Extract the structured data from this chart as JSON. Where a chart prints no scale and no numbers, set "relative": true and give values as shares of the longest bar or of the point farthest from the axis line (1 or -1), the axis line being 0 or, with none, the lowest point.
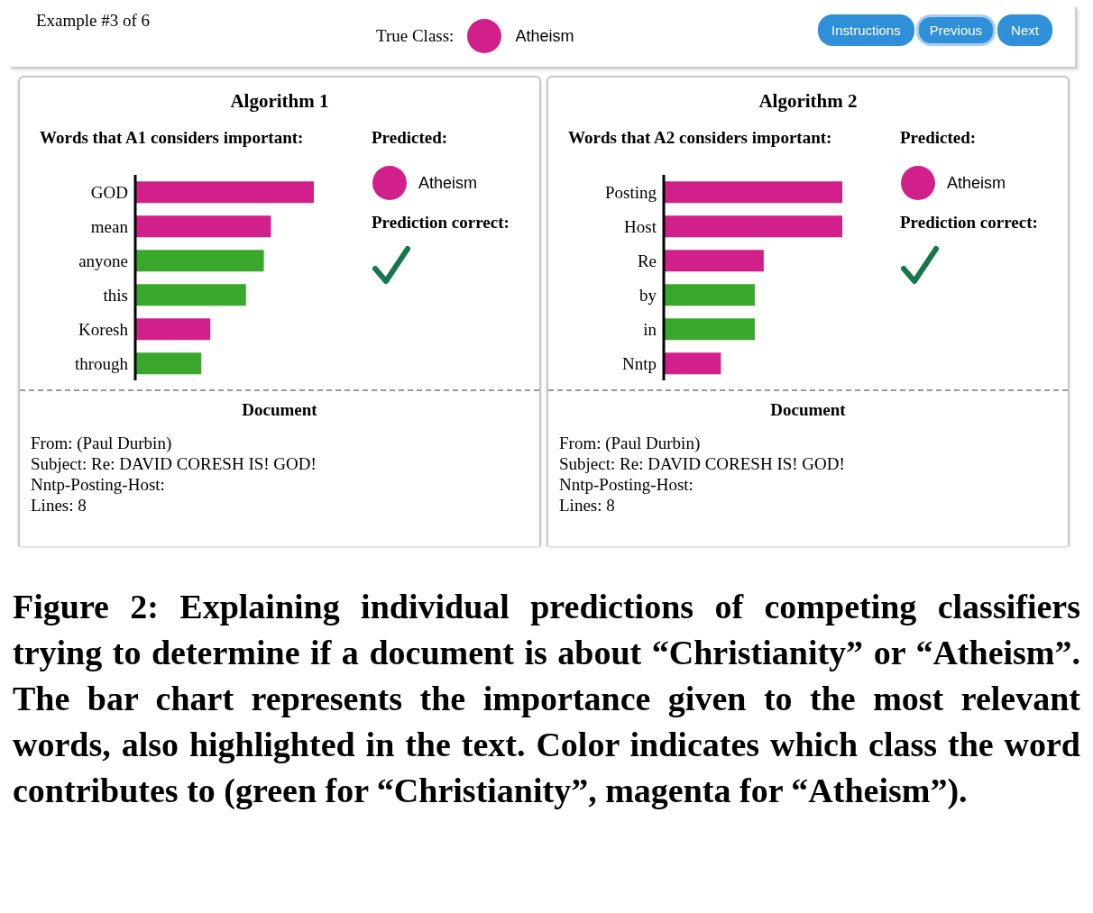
{
  "chart_data": [
    {
      "type": "bar",
      "orientation": "horizontal",
      "relative": true,
      "title": "Algorithm 1",
      "subtitle": "Words that A1 considers important:",
      "categories": [
        "GOD",
        "mean",
        "anyone",
        "this",
        "Koresh",
        "through"
      ],
      "values": [
        1,
        0.76,
        0.72,
        0.62,
        0.42,
        0.37
      ],
      "colors": [
        "#d1208a",
        "#d1208a",
        "#3aa82c",
        "#3aa82c",
        "#d1208a",
        "#3aa82c"
      ],
      "annotations": [
        "Example #3 of 6",
        "True Class:",
        "Atheism",
        "Instructions",
        "Previous",
        "Next",
        "Predicted:",
        "Atheism",
        "Prediction correct:",
        "Document",
        "From: (Paul Durbin)",
        "Subject: Re: DAVID CORESH IS! GOD!",
        "Nntp-Posting-Host:",
        "Lines: 8"
      ]
    },
    {
      "type": "bar",
      "orientation": "horizontal",
      "relative": true,
      "title": "Algorithm 2",
      "subtitle": "Words that A2 considers important:",
      "categories": [
        "Posting",
        "Host",
        "Re",
        "by",
        "in",
        "Nntp"
      ],
      "values": [
        1,
        1,
        0.56,
        0.51,
        0.51,
        0.32
      ],
      "colors": [
        "#d1208a",
        "#d1208a",
        "#d1208a",
        "#3aa82c",
        "#3aa82c",
        "#d1208a"
      ],
      "annotations": [
        "Predicted:",
        "Atheism",
        "Prediction correct:",
        "Document",
        "From: (Paul Durbin)",
        "Subject: Re: DAVID CORESH IS! GOD!",
        "Nntp-Posting-Host:",
        "Lines: 8",
        "Figure 2: Explaining individual predictions of competing classifiers trying to determine if a document is about “Christianity” or “Atheism”. The bar chart represents the importance given to the most relevant words, also highlighted in the text. Color indicates which class the word contributes to (green for “Christianity”, magenta for “Atheism”)."
      ]
    }
  ]
}
